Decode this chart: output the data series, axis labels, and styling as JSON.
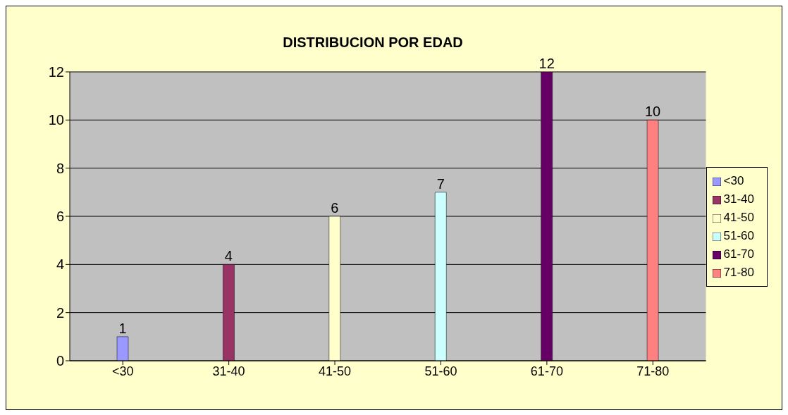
{
  "chart_data": {
    "type": "bar",
    "title": "DISTRIBUCION POR EDAD",
    "categories": [
      "<30",
      "31-40",
      "41-50",
      "51-60",
      "61-70",
      "71-80"
    ],
    "series": [
      {
        "name": "<30",
        "color": "#9999ff",
        "values": [
          1,
          null,
          null,
          null,
          null,
          null
        ]
      },
      {
        "name": "31-40",
        "color": "#993366",
        "values": [
          null,
          4,
          null,
          null,
          null,
          null
        ]
      },
      {
        "name": "41-50",
        "color": "#ffffcc",
        "values": [
          null,
          null,
          6,
          null,
          null,
          null
        ]
      },
      {
        "name": "51-60",
        "color": "#ccffff",
        "values": [
          null,
          null,
          null,
          7,
          null,
          null
        ]
      },
      {
        "name": "61-70",
        "color": "#660066",
        "values": [
          null,
          null,
          null,
          null,
          12,
          null
        ]
      },
      {
        "name": "71-80",
        "color": "#ff8080",
        "values": [
          null,
          null,
          null,
          null,
          null,
          10
        ]
      }
    ],
    "stacked": true,
    "ylim": [
      0,
      12
    ],
    "yticks": [
      0,
      2,
      4,
      6,
      8,
      10,
      12
    ],
    "grid": "y",
    "legend": "right",
    "data_labels": true
  }
}
